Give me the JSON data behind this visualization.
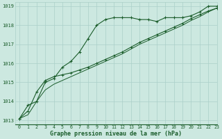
{
  "title": "Graphe pression niveau de la mer (hPa)",
  "background_color": "#cce8e0",
  "grid_color": "#aacfc8",
  "line_color": "#1a5c2a",
  "xlim": [
    -0.5,
    23
  ],
  "ylim": [
    1012.8,
    1019.2
  ],
  "yticks": [
    1013,
    1014,
    1015,
    1016,
    1017,
    1018,
    1019
  ],
  "xticks": [
    0,
    1,
    2,
    3,
    4,
    5,
    6,
    7,
    8,
    9,
    10,
    11,
    12,
    13,
    14,
    15,
    16,
    17,
    18,
    19,
    20,
    21,
    22,
    23
  ],
  "series1_x": [
    0,
    1,
    2,
    3,
    4,
    5,
    6,
    7,
    8,
    9,
    10,
    11,
    12,
    13,
    14,
    15,
    16,
    17,
    18,
    19,
    20,
    21,
    22,
    23
  ],
  "series1_y": [
    1013.1,
    1013.8,
    1014.0,
    1015.0,
    1015.2,
    1015.8,
    1016.1,
    1016.6,
    1017.3,
    1018.0,
    1018.3,
    1018.4,
    1018.4,
    1018.4,
    1018.3,
    1018.3,
    1018.2,
    1018.4,
    1018.4,
    1018.4,
    1018.5,
    1018.7,
    1019.0,
    1019.0
  ],
  "series2_x": [
    0,
    1,
    2,
    3,
    4,
    5,
    6,
    7,
    8,
    9,
    10,
    11,
    12,
    13,
    14,
    15,
    16,
    17,
    18,
    19,
    20,
    21,
    22,
    23
  ],
  "series2_y": [
    1013.1,
    1013.5,
    1014.5,
    1015.1,
    1015.3,
    1015.4,
    1015.5,
    1015.65,
    1015.8,
    1016.0,
    1016.2,
    1016.4,
    1016.6,
    1016.85,
    1017.1,
    1017.3,
    1017.5,
    1017.7,
    1017.9,
    1018.1,
    1018.35,
    1018.55,
    1018.75,
    1018.9
  ],
  "series3_x": [
    0,
    1,
    2,
    3,
    4,
    5,
    6,
    7,
    8,
    9,
    10,
    11,
    12,
    13,
    14,
    15,
    16,
    17,
    18,
    19,
    20,
    21,
    22,
    23
  ],
  "series3_y": [
    1013.1,
    1013.3,
    1014.0,
    1014.6,
    1014.9,
    1015.1,
    1015.3,
    1015.5,
    1015.7,
    1015.9,
    1016.1,
    1016.3,
    1016.5,
    1016.75,
    1017.0,
    1017.2,
    1017.4,
    1017.6,
    1017.8,
    1018.0,
    1018.25,
    1018.45,
    1018.7,
    1018.9
  ]
}
